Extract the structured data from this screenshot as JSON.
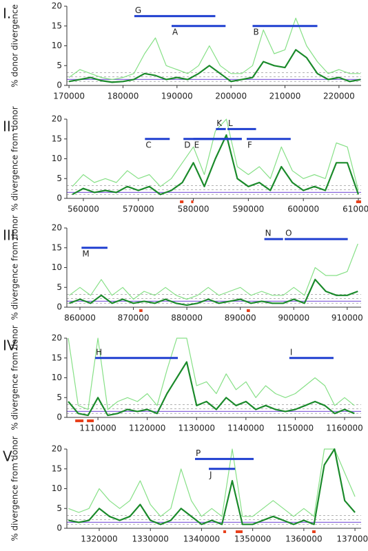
{
  "chart_data": [
    {
      "type": "line",
      "label": "I.",
      "ylabel": "% donor divergence",
      "xlim": [
        169600,
        224100
      ],
      "ylim": [
        0,
        20
      ],
      "xticks": [
        170000,
        180000,
        190000,
        200000,
        210000,
        220000
      ],
      "yticks": [
        0,
        5,
        10,
        15,
        20
      ],
      "x": [
        170000,
        172000,
        174000,
        176000,
        178000,
        180000,
        182000,
        184000,
        186000,
        188000,
        190000,
        192000,
        194000,
        196000,
        198000,
        200000,
        202000,
        204000,
        206000,
        208000,
        210000,
        212000,
        214000,
        216000,
        218000,
        220000,
        222000,
        224000
      ],
      "series": [
        {
          "color": "#86e086",
          "values": [
            2,
            4,
            3,
            2,
            1.5,
            2,
            3,
            8,
            12,
            5,
            4,
            3,
            5,
            10,
            5,
            3,
            3,
            5,
            14,
            8,
            9,
            17,
            10,
            6,
            3,
            4,
            3,
            3
          ]
        },
        {
          "color": "#1a8a2a",
          "values": [
            1,
            1.5,
            2,
            1.2,
            0.8,
            1,
            1.5,
            3,
            2.5,
            1.5,
            2,
            1.5,
            3,
            5,
            3,
            1,
            1.5,
            2,
            6,
            5,
            4.5,
            9,
            7,
            3,
            1.5,
            2,
            1,
            1.5
          ]
        }
      ],
      "hlines": [
        {
          "value": 1.0,
          "color": "#999999",
          "dashed": true
        },
        {
          "value": 2.2,
          "color": "#999999",
          "dashed": true
        },
        {
          "value": 3.2,
          "color": "#999999",
          "dashed": true
        },
        {
          "value": 1.5,
          "color": "#8866dd",
          "dashed": false
        }
      ],
      "segment_color": "#1f3fd0",
      "segments": [
        {
          "label": "G",
          "start": 182100,
          "end": 197100,
          "y": 17.5,
          "label_side": "above"
        },
        {
          "label": "A",
          "start": 189000,
          "end": 199000,
          "y": 15,
          "label_side": "below"
        },
        {
          "label": "B",
          "start": 204000,
          "end": 216000,
          "y": 15,
          "label_side": "below"
        }
      ],
      "region_color": "#e8401c",
      "regions": []
    },
    {
      "type": "line",
      "label": "II.",
      "ylabel": "% divergence from donor",
      "xlim": [
        557000,
        610500
      ],
      "ylim": [
        0,
        20
      ],
      "xticks": [
        560000,
        570000,
        580000,
        590000,
        600000,
        610000
      ],
      "yticks": [
        0,
        5,
        10,
        15,
        20
      ],
      "x": [
        558000,
        560000,
        562000,
        564000,
        566000,
        568000,
        570000,
        572000,
        574000,
        576000,
        578000,
        580000,
        582000,
        584000,
        586000,
        588000,
        590000,
        592000,
        594000,
        596000,
        598000,
        600000,
        602000,
        604000,
        606000,
        608000,
        610000
      ],
      "series": [
        {
          "color": "#86e086",
          "values": [
            3,
            6,
            4,
            5,
            4,
            7,
            5,
            6,
            3,
            5,
            9,
            13,
            6,
            17,
            20,
            8,
            6,
            8,
            5,
            13,
            7,
            5,
            6,
            5,
            14,
            13,
            2
          ]
        },
        {
          "color": "#1a8a2a",
          "values": [
            1,
            2.5,
            1.5,
            2,
            1.5,
            3,
            2,
            3,
            1,
            2,
            4,
            9,
            3,
            10,
            16,
            5,
            3,
            4,
            2,
            8,
            4,
            2,
            3,
            2,
            9,
            9,
            1
          ]
        }
      ],
      "hlines": [
        {
          "value": 1.0,
          "color": "#999999",
          "dashed": true
        },
        {
          "value": 2.2,
          "color": "#999999",
          "dashed": true
        },
        {
          "value": 3.2,
          "color": "#999999",
          "dashed": true
        },
        {
          "value": 1.5,
          "color": "#8866dd",
          "dashed": false
        }
      ],
      "segment_color": "#1f3fd0",
      "segments": [
        {
          "label": "C",
          "start": 571200,
          "end": 575700,
          "y": 15,
          "label_side": "below"
        },
        {
          "label": "D",
          "start": 578200,
          "end": 588800,
          "y": 15,
          "label_side": "below"
        },
        {
          "label": "E",
          "start": 580000,
          "end": 588800,
          "y": 15,
          "label_side": "below"
        },
        {
          "label": "K",
          "start": 584100,
          "end": 585900,
          "y": 17.5,
          "label_side": "above"
        },
        {
          "label": "L",
          "start": 586200,
          "end": 591400,
          "y": 17.5,
          "label_side": "above"
        },
        {
          "label": "F",
          "start": 589700,
          "end": 597700,
          "y": 15,
          "label_side": "below"
        }
      ],
      "region_color": "#e8401c",
      "regions": [
        {
          "start": 577560,
          "end": 578200
        },
        {
          "start": 579600,
          "end": 580000
        },
        {
          "start": 609600,
          "end": 610500
        }
      ]
    },
    {
      "type": "line",
      "label": "III.",
      "ylabel": "% divergence from donor",
      "xlim": [
        857550,
        912600
      ],
      "ylim": [
        0,
        20
      ],
      "xticks": [
        860000,
        870000,
        880000,
        890000,
        900000,
        910000
      ],
      "yticks": [
        0,
        5,
        10,
        15,
        20
      ],
      "x": [
        858000,
        860000,
        862000,
        864000,
        866000,
        868000,
        870000,
        872000,
        874000,
        876000,
        878000,
        880000,
        882000,
        884000,
        886000,
        888000,
        890000,
        892000,
        894000,
        896000,
        898000,
        900000,
        902000,
        904000,
        906000,
        908000,
        910000,
        912000
      ],
      "series": [
        {
          "color": "#86e086",
          "values": [
            3,
            5,
            3,
            7,
            3,
            5,
            2,
            4,
            3,
            5,
            3,
            2,
            3,
            5,
            3,
            4,
            5,
            3,
            4,
            3,
            3,
            5,
            3,
            10,
            8,
            8,
            9,
            16
          ]
        },
        {
          "color": "#1a8a2a",
          "values": [
            1,
            2,
            1,
            3,
            1,
            2,
            1,
            1.5,
            1,
            2,
            1,
            0.5,
            1,
            2,
            1,
            1.5,
            2,
            1,
            1.5,
            1,
            1,
            2,
            1,
            7,
            4,
            3,
            3,
            4
          ]
        }
      ],
      "hlines": [
        {
          "value": 1.0,
          "color": "#999999",
          "dashed": true
        },
        {
          "value": 2.2,
          "color": "#999999",
          "dashed": true
        },
        {
          "value": 3.2,
          "color": "#999999",
          "dashed": true
        },
        {
          "value": 1.5,
          "color": "#8866dd",
          "dashed": false
        }
      ],
      "segment_color": "#1f3fd0",
      "segments": [
        {
          "label": "M",
          "start": 860300,
          "end": 865150,
          "y": 15,
          "label_side": "below"
        },
        {
          "label": "N",
          "start": 894500,
          "end": 898000,
          "y": 17.2,
          "label_side": "above"
        },
        {
          "label": "O",
          "start": 898300,
          "end": 910100,
          "y": 17.2,
          "label_side": "above"
        }
      ],
      "region_color": "#e8401c",
      "regions": [
        {
          "start": 871100,
          "end": 871700
        },
        {
          "start": 891200,
          "end": 891800
        }
      ]
    },
    {
      "type": "line",
      "label": "IV.",
      "ylabel": "% divergence from donor",
      "xlim": [
        1103700,
        1163350
      ],
      "ylim": [
        0,
        20
      ],
      "xticks": [
        1110000,
        1120000,
        1130000,
        1140000,
        1150000,
        1160000
      ],
      "yticks": [
        0,
        5,
        10,
        15,
        20
      ],
      "x": [
        1104000,
        1106000,
        1108000,
        1110000,
        1112000,
        1114000,
        1116000,
        1118000,
        1120000,
        1122000,
        1124000,
        1126000,
        1128000,
        1130000,
        1132000,
        1134000,
        1136000,
        1138000,
        1140000,
        1142000,
        1144000,
        1146000,
        1148000,
        1150000,
        1152000,
        1154000,
        1156000,
        1158000,
        1160000,
        1162000
      ],
      "series": [
        {
          "color": "#86e086",
          "values": [
            20,
            3,
            2,
            20,
            2,
            4,
            5,
            4,
            6,
            3,
            12,
            20,
            20,
            8,
            9,
            6,
            11,
            7,
            9,
            5,
            8,
            6,
            5,
            6,
            8,
            10,
            8,
            3,
            5,
            3
          ]
        },
        {
          "color": "#1a8a2a",
          "values": [
            4,
            1,
            0.5,
            5,
            0.5,
            1,
            2,
            1.5,
            2,
            1,
            6,
            10,
            14,
            3,
            4,
            2,
            5,
            3,
            4,
            2,
            3,
            2,
            1.5,
            2,
            3,
            4,
            3,
            1,
            2,
            1
          ]
        }
      ],
      "hlines": [
        {
          "value": 1.0,
          "color": "#999999",
          "dashed": true
        },
        {
          "value": 2.2,
          "color": "#999999",
          "dashed": true
        },
        {
          "value": 3.2,
          "color": "#999999",
          "dashed": true
        },
        {
          "value": 1.5,
          "color": "#8866dd",
          "dashed": false
        }
      ],
      "segment_color": "#1f3fd0",
      "segments": [
        {
          "label": "H",
          "start": 1109440,
          "end": 1126200,
          "y": 15,
          "label_side": "above"
        },
        {
          "label": "I",
          "start": 1148800,
          "end": 1157760,
          "y": 15,
          "label_side": "above"
        }
      ],
      "region_color": "#e8401c",
      "regions": [
        {
          "start": 1105400,
          "end": 1107070
        },
        {
          "start": 1107770,
          "end": 1109160
        }
      ]
    },
    {
      "type": "line",
      "label": "V.",
      "ylabel": "% divergence from donor",
      "xlim": [
        1313670,
        1371200
      ],
      "ylim": [
        0,
        20
      ],
      "xticks": [
        1320000,
        1330000,
        1340000,
        1350000,
        1360000,
        1370000
      ],
      "yticks": [
        0,
        5,
        10,
        15,
        20
      ],
      "x": [
        1314000,
        1316000,
        1318000,
        1320000,
        1322000,
        1324000,
        1326000,
        1328000,
        1330000,
        1332000,
        1334000,
        1336000,
        1338000,
        1340000,
        1342000,
        1344000,
        1346000,
        1348000,
        1350000,
        1352000,
        1354000,
        1356000,
        1358000,
        1360000,
        1362000,
        1364000,
        1366000,
        1368000,
        1370000
      ],
      "series": [
        {
          "color": "#86e086",
          "values": [
            5,
            4,
            5,
            10,
            7,
            5,
            7,
            12,
            6,
            3,
            5,
            15,
            7,
            3,
            5,
            3,
            20,
            3,
            3,
            5,
            7,
            5,
            3,
            5,
            3,
            20,
            20,
            14,
            8
          ]
        },
        {
          "color": "#1a8a2a",
          "values": [
            2,
            1.5,
            2,
            5,
            3,
            2,
            3,
            6,
            2,
            1,
            2,
            5,
            3,
            1,
            2,
            1,
            12,
            1,
            1,
            2,
            3,
            2,
            1,
            2,
            1,
            16,
            20,
            7,
            4
          ]
        }
      ],
      "hlines": [
        {
          "value": 1.0,
          "color": "#999999",
          "dashed": true
        },
        {
          "value": 2.2,
          "color": "#999999",
          "dashed": true
        },
        {
          "value": 3.2,
          "color": "#999999",
          "dashed": true
        },
        {
          "value": 1.5,
          "color": "#8866dd",
          "dashed": false
        }
      ],
      "segment_color": "#1f3fd0",
      "segments": [
        {
          "label": "P",
          "start": 1338730,
          "end": 1350190,
          "y": 17.5,
          "label_side": "above"
        },
        {
          "label": "J",
          "start": 1341430,
          "end": 1346550,
          "y": 15,
          "label_side": "below"
        }
      ],
      "region_color": "#e8401c",
      "regions": [
        {
          "start": 1344260,
          "end": 1344800
        },
        {
          "start": 1346680,
          "end": 1348030
        },
        {
          "start": 1361640,
          "end": 1362300
        }
      ]
    }
  ]
}
